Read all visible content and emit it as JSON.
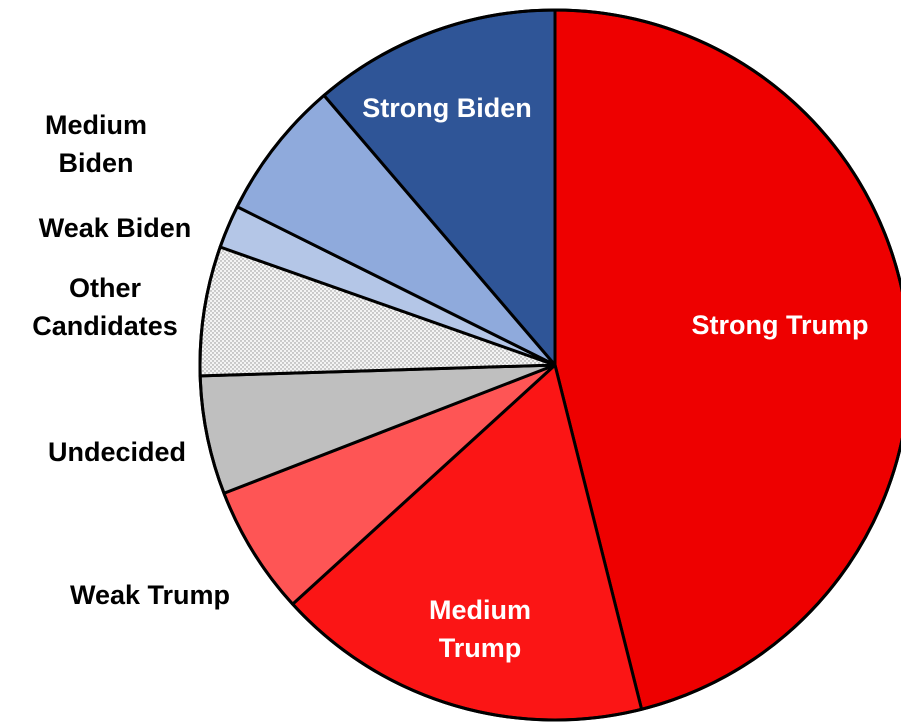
{
  "chart_data": {
    "type": "pie",
    "title": "",
    "start_angle_deg": 0,
    "direction": "clockwise",
    "slices": [
      {
        "label": "Strong Trump",
        "value": 47,
        "color": "#ee0000",
        "fill": "solid",
        "label_color": "#ffffff"
      },
      {
        "label": "Medium Trump",
        "value": 17.5,
        "color": "#fb1515",
        "fill": "solid",
        "label_color": "#ffffff"
      },
      {
        "label": "Weak Trump",
        "value": 6,
        "color": "#fe5555",
        "fill": "solid",
        "label_color": "#000000"
      },
      {
        "label": "Undecided",
        "value": 5.5,
        "color": "#bfbfbf",
        "fill": "solid",
        "label_color": "#000000"
      },
      {
        "label": "Other Candidates",
        "value": 6,
        "color": "#e4e4e4",
        "fill": "dotted",
        "label_color": "#000000"
      },
      {
        "label": "Weak Biden",
        "value": 2,
        "color": "#b4c6e7",
        "fill": "solid",
        "label_color": "#000000"
      },
      {
        "label": "Medium Biden",
        "value": 6.5,
        "color": "#8faadc",
        "fill": "solid",
        "label_color": "#000000"
      },
      {
        "label": "Strong Biden",
        "value": 11.5,
        "color": "#2f5597",
        "fill": "solid",
        "label_color": "#ffffff"
      }
    ]
  }
}
